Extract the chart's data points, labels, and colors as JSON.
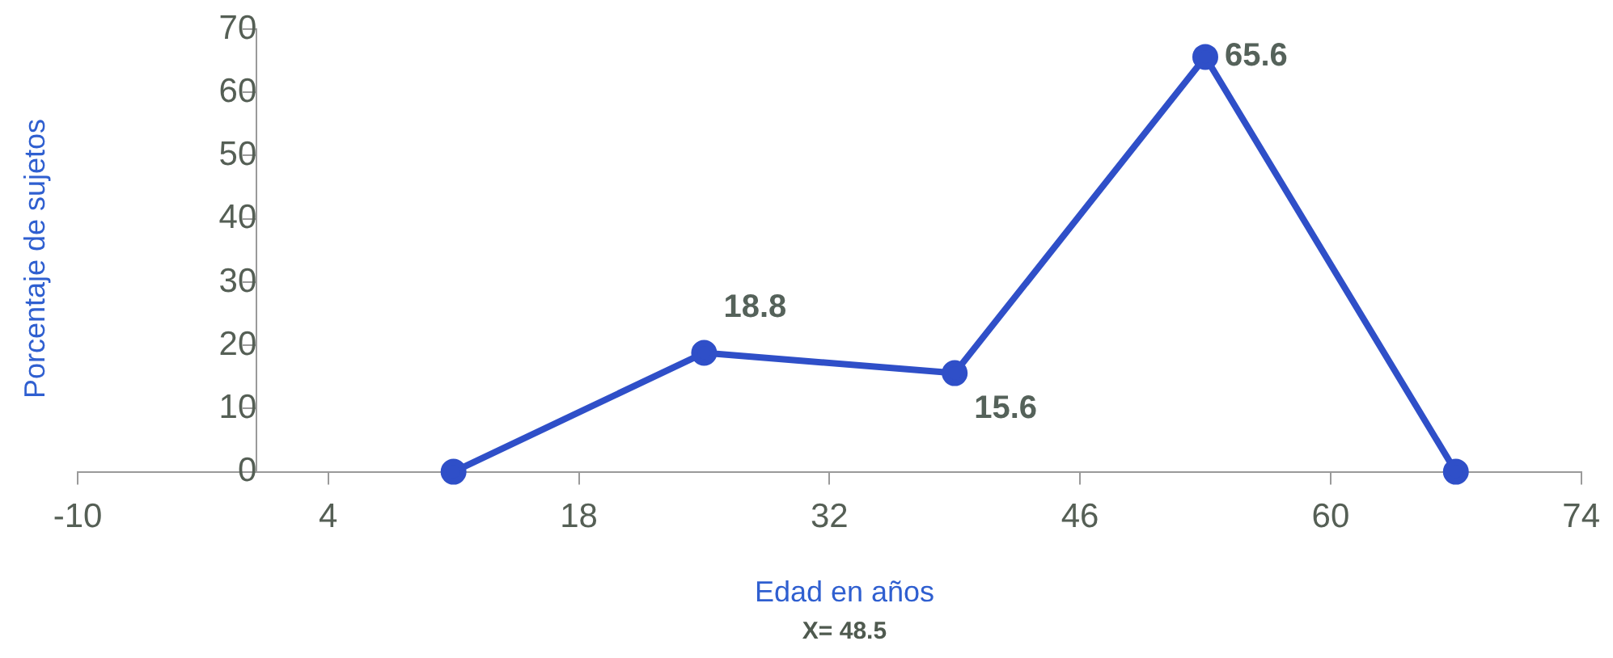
{
  "chart_data": {
    "type": "line",
    "xlabel": "Edad en años",
    "ylabel": "Porcentaje de sujetos",
    "annotations": [
      "X= 48.5"
    ],
    "x": [
      11,
      25,
      39,
      53,
      67
    ],
    "series": [
      {
        "color": "#2f4fc8",
        "values": [
          0,
          18.8,
          15.6,
          65.6,
          0
        ],
        "value_labels": [
          null,
          "18.8",
          "15.6",
          "65.6",
          null
        ]
      }
    ],
    "xlim": [
      -10,
      74
    ],
    "xticks": [
      -10,
      4,
      18,
      32,
      46,
      60,
      74
    ],
    "ylim": [
      0,
      70
    ],
    "yticks": [
      0,
      10,
      20,
      30,
      40,
      50,
      60,
      70
    ],
    "grid": false,
    "legend": false,
    "marker": "circle",
    "line_style": "solid"
  }
}
